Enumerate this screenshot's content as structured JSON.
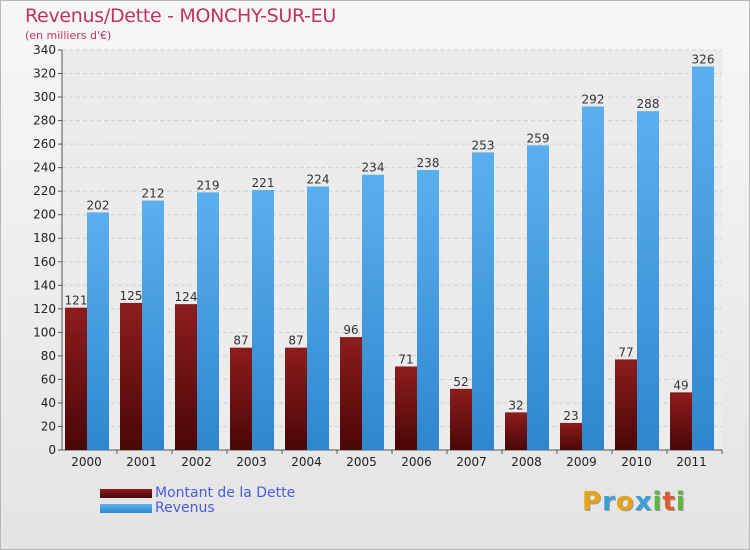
{
  "chart_data": {
    "type": "bar",
    "title": "Revenus/Dette - MONCHY-SUR-EU",
    "subtitle": "(en milliers d'€)",
    "categories": [
      "2000",
      "2001",
      "2002",
      "2003",
      "2004",
      "2005",
      "2006",
      "2007",
      "2008",
      "2009",
      "2010",
      "2011"
    ],
    "series": [
      {
        "name": "Montant de la Dette",
        "color": "#7a1515",
        "values": [
          121,
          125,
          124,
          87,
          87,
          96,
          71,
          52,
          32,
          23,
          77,
          49
        ]
      },
      {
        "name": "Revenus",
        "color": "#4fa3e6",
        "values": [
          202,
          212,
          219,
          221,
          224,
          234,
          238,
          253,
          259,
          292,
          288,
          326
        ]
      }
    ],
    "ylim": [
      0,
      340
    ],
    "yticks": [
      0,
      20,
      40,
      60,
      80,
      100,
      120,
      140,
      160,
      180,
      200,
      220,
      240,
      260,
      280,
      300,
      320,
      340
    ],
    "grid": true,
    "legend_position": "bottom-left"
  },
  "logo": {
    "letters": [
      "P",
      "r",
      "o",
      "x",
      "i",
      "t",
      "i"
    ],
    "colors": [
      "#e8a317",
      "#3aa0d8",
      "#e8a317",
      "#3aa0d8",
      "#5cb83c",
      "#e05a2a",
      "#5cb83c"
    ]
  }
}
